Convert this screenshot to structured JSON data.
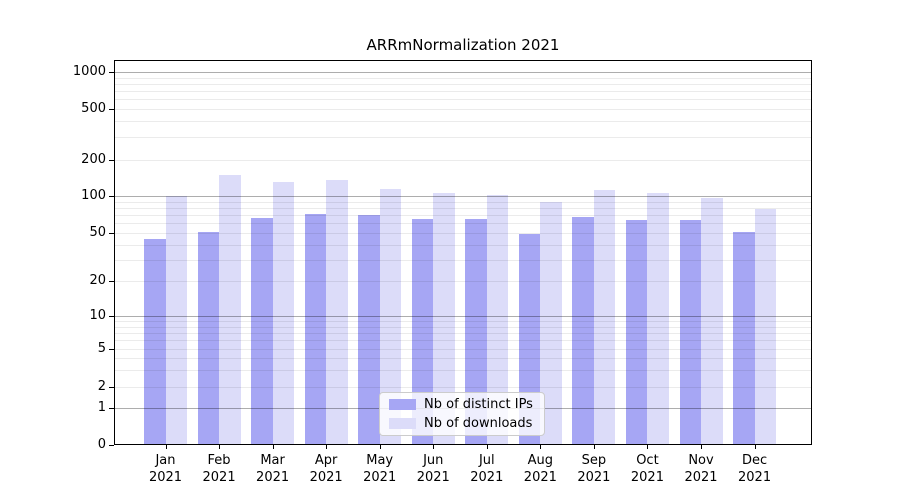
{
  "figure_title": "ARRmNormalization 2021",
  "colors": {
    "bar_distinct_ips": "#a6a6f4",
    "bar_downloads": "#dcdcf9",
    "grid_major": "rgba(0,0,0,0.32)",
    "grid_minor": "rgba(0,0,0,0.08)",
    "spine": "#000000",
    "text": "#000000",
    "legend_border": "#cccccc",
    "legend_background": "rgba(255,255,255,0.8)"
  },
  "chart_data": {
    "type": "bar",
    "title": "ARRmNormalization 2021",
    "months": [
      "Jan",
      "Feb",
      "Mar",
      "Apr",
      "May",
      "Jun",
      "Jul",
      "Aug",
      "Sep",
      "Oct",
      "Nov",
      "Dec"
    ],
    "year": "2021",
    "categories": [
      "Jan 2021",
      "Feb 2021",
      "Mar 2021",
      "Apr 2021",
      "May 2021",
      "Jun 2021",
      "Jul 2021",
      "Aug 2021",
      "Sep 2021",
      "Oct 2021",
      "Nov 2021",
      "Dec 2021"
    ],
    "series": [
      {
        "name": "Nb of distinct IPs",
        "color": "#a6a6f4",
        "values": [
          45,
          51,
          66,
          71,
          70,
          65,
          65,
          49,
          67,
          64,
          64,
          51
        ]
      },
      {
        "name": "Nb of downloads",
        "color": "#dcdcf9",
        "values": [
          100,
          150,
          130,
          137,
          115,
          106,
          101,
          90,
          112,
          105,
          97,
          78
        ]
      }
    ],
    "y_scale": "symlog",
    "y_ticks": [
      1000,
      500,
      200,
      100,
      50,
      20,
      10,
      5,
      2,
      1,
      0
    ],
    "ylim": [
      0,
      1300
    ],
    "xlabel": "",
    "ylabel": "",
    "grid": true,
    "grid_major_at": [
      1,
      10,
      100,
      1000
    ],
    "legend_position": "lower center"
  }
}
